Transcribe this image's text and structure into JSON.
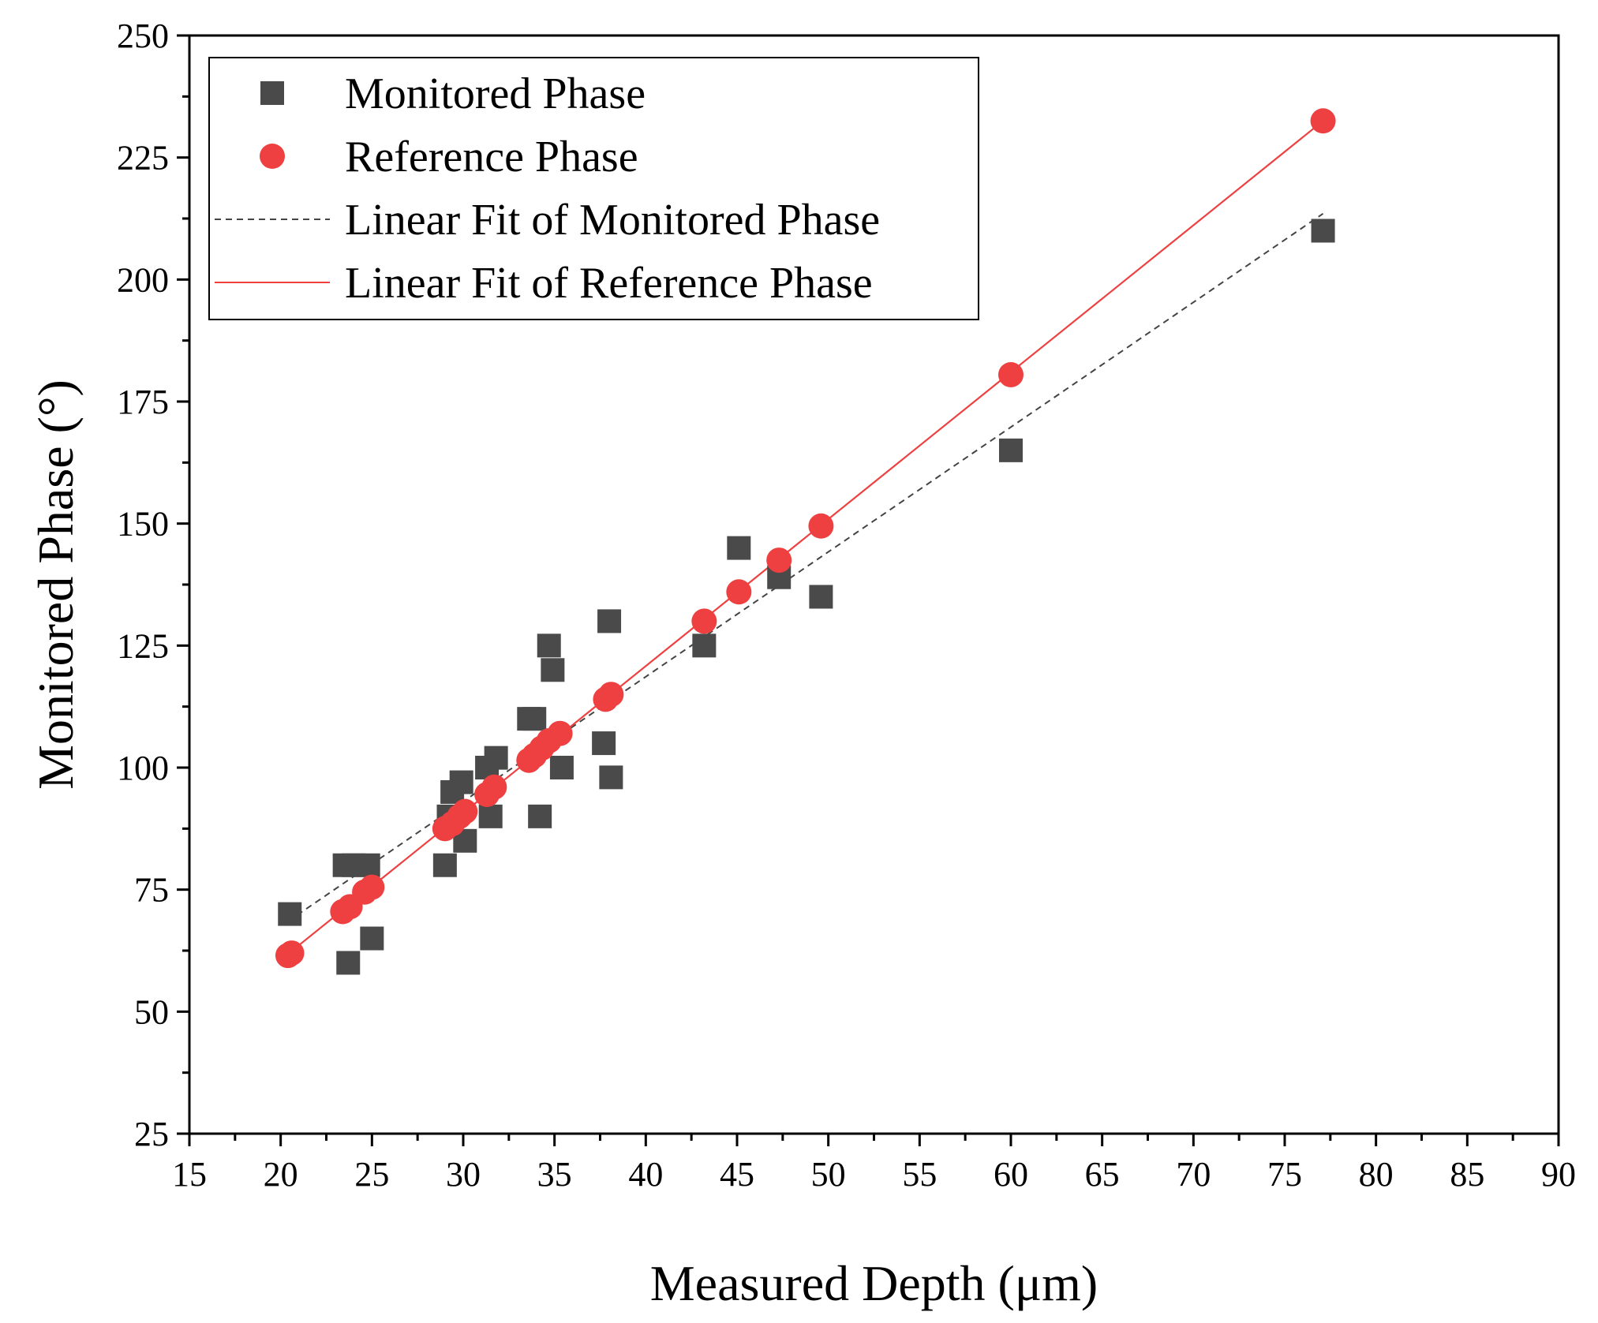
{
  "chart_data": {
    "type": "scatter",
    "title": "",
    "xlabel": "Measured Depth (μm)",
    "ylabel": "Monitored Phase (°)",
    "xlim": [
      15,
      90
    ],
    "ylim": [
      25,
      250
    ],
    "xticks": [
      15,
      20,
      25,
      30,
      35,
      40,
      45,
      50,
      55,
      60,
      65,
      70,
      75,
      80,
      85,
      90
    ],
    "yticks": [
      25,
      50,
      75,
      100,
      125,
      150,
      175,
      200,
      225,
      250
    ],
    "legend_position": "top-left",
    "series": [
      {
        "name": "Monitored Phase",
        "kind": "scatter",
        "marker": "square",
        "color": "#4a4a4a",
        "points": [
          [
            20.5,
            70
          ],
          [
            23.5,
            80
          ],
          [
            24.0,
            80
          ],
          [
            24.8,
            80
          ],
          [
            23.7,
            60
          ],
          [
            25.0,
            65
          ],
          [
            29.0,
            80
          ],
          [
            29.2,
            90
          ],
          [
            29.4,
            95
          ],
          [
            29.9,
            97
          ],
          [
            30.1,
            85
          ],
          [
            31.3,
            100
          ],
          [
            31.8,
            102
          ],
          [
            31.5,
            90
          ],
          [
            33.6,
            110
          ],
          [
            33.9,
            110
          ],
          [
            34.7,
            125
          ],
          [
            34.9,
            120
          ],
          [
            34.2,
            90
          ],
          [
            35.4,
            100
          ],
          [
            37.7,
            105
          ],
          [
            38.0,
            130
          ],
          [
            38.1,
            98
          ],
          [
            43.2,
            125
          ],
          [
            45.1,
            145
          ],
          [
            47.3,
            139
          ],
          [
            49.6,
            135
          ],
          [
            60.0,
            165
          ],
          [
            77.1,
            210
          ]
        ]
      },
      {
        "name": "Reference Phase",
        "kind": "scatter",
        "marker": "circle",
        "color": "#ee4040",
        "points": [
          [
            20.4,
            61.5
          ],
          [
            20.6,
            62
          ],
          [
            23.4,
            70.5
          ],
          [
            23.8,
            71.5
          ],
          [
            24.6,
            74.5
          ],
          [
            25.0,
            75.5
          ],
          [
            29.0,
            87.5
          ],
          [
            29.4,
            88.5
          ],
          [
            29.8,
            90
          ],
          [
            30.1,
            91
          ],
          [
            31.3,
            94.5
          ],
          [
            31.7,
            96
          ],
          [
            33.6,
            101.5
          ],
          [
            33.9,
            102.5
          ],
          [
            34.3,
            104
          ],
          [
            34.7,
            105.5
          ],
          [
            35.3,
            107
          ],
          [
            37.8,
            114
          ],
          [
            38.1,
            115
          ],
          [
            43.2,
            130
          ],
          [
            45.1,
            136
          ],
          [
            47.3,
            142.5
          ],
          [
            49.6,
            149.5
          ],
          [
            60.0,
            180.5
          ],
          [
            77.1,
            232.5
          ]
        ]
      },
      {
        "name": "Linear Fit of Monitored Phase",
        "kind": "line",
        "style": "dashed",
        "color": "#444444",
        "x": [
          20.4,
          77.1
        ],
        "y": [
          68.5,
          213.5
        ]
      },
      {
        "name": "Linear Fit of Reference Phase",
        "kind": "line",
        "style": "solid",
        "color": "#ee4040",
        "x": [
          20.4,
          77.1
        ],
        "y": [
          61.8,
          232.5
        ]
      }
    ]
  }
}
